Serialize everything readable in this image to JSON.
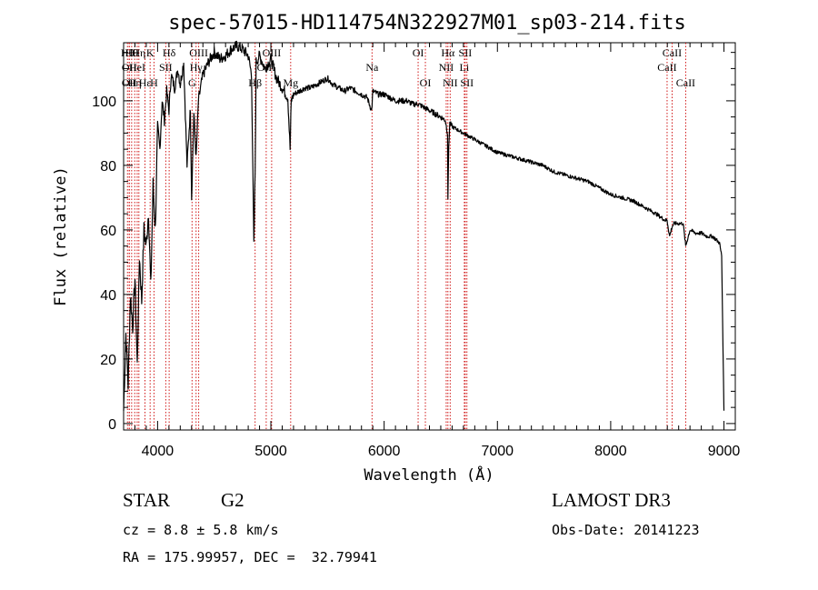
{
  "chart_data": {
    "type": "line",
    "title": "spec-57015-HD114754N322927M01_sp03-214.fits",
    "xlabel": "Wavelength (Å)",
    "ylabel": "Flux (relative)",
    "xlim": [
      3700,
      9100
    ],
    "ylim": [
      -2,
      118
    ],
    "xticks": [
      4000,
      5000,
      6000,
      7000,
      8000,
      9000
    ],
    "yticks": [
      0,
      20,
      40,
      60,
      80,
      100
    ],
    "series": [
      {
        "name": "flux",
        "x": [
          3700,
          3720,
          3740,
          3760,
          3780,
          3800,
          3820,
          3840,
          3860,
          3880,
          3900,
          3920,
          3940,
          3960,
          3980,
          4000,
          4020,
          4040,
          4060,
          4080,
          4100,
          4120,
          4150,
          4180,
          4200,
          4230,
          4260,
          4290,
          4300,
          4320,
          4340,
          4360,
          4380,
          4400,
          4450,
          4500,
          4550,
          4600,
          4650,
          4700,
          4750,
          4800,
          4830,
          4850,
          4861,
          4870,
          4900,
          4950,
          5000,
          5050,
          5100,
          5150,
          5170,
          5180,
          5200,
          5250,
          5300,
          5350,
          5400,
          5450,
          5500,
          5550,
          5600,
          5650,
          5700,
          5750,
          5800,
          5850,
          5890,
          5900,
          5950,
          6000,
          6050,
          6100,
          6150,
          6200,
          6250,
          6300,
          6350,
          6400,
          6450,
          6500,
          6540,
          6560,
          6563,
          6570,
          6580,
          6600,
          6650,
          6700,
          6800,
          6900,
          7000,
          7100,
          7200,
          7300,
          7400,
          7500,
          7600,
          7700,
          7800,
          7900,
          8000,
          8100,
          8200,
          8300,
          8400,
          8480,
          8498,
          8520,
          8542,
          8560,
          8600,
          8640,
          8662,
          8700,
          8750,
          8800,
          8850,
          8900,
          8930,
          8960,
          8980,
          9000
        ],
        "y": [
          4,
          28,
          12,
          40,
          30,
          45,
          18,
          52,
          38,
          60,
          55,
          66,
          42,
          74,
          60,
          92,
          85,
          100,
          94,
          103,
          97,
          108,
          104,
          110,
          105,
          112,
          80,
          98,
          70,
          96,
          82,
          100,
          104,
          108,
          112,
          115,
          113,
          114,
          116,
          117,
          116,
          114,
          108,
          55,
          78,
          112,
          114,
          110,
          113,
          107,
          104,
          101,
          85,
          100,
          102,
          103,
          104,
          104,
          105,
          106,
          107,
          105,
          104,
          103,
          104,
          103,
          102,
          101,
          97,
          103,
          102,
          102,
          101,
          100,
          100,
          100,
          99,
          99,
          98,
          97,
          96,
          95,
          94,
          90,
          70,
          86,
          93,
          92,
          91,
          90,
          88,
          86,
          84,
          83,
          82,
          81,
          80,
          78,
          77,
          76,
          75,
          73,
          71,
          70,
          69,
          67,
          65,
          63,
          63,
          58,
          61,
          62,
          62,
          62,
          55,
          60,
          59,
          59,
          58,
          58,
          57,
          56,
          52,
          4
        ]
      }
    ],
    "lines": [
      {
        "x": 3734,
        "label": "Hθ",
        "row": 1
      },
      {
        "x": 3750,
        "label": "OII",
        "row": 2
      },
      {
        "x": 3750,
        "label": "OII",
        "row": 3
      },
      {
        "x": 3771,
        "label": "Hθ",
        "row": 1
      },
      {
        "x": 3798,
        "label": "Hη",
        "row": 3
      },
      {
        "x": 3820,
        "label": "HeI",
        "row": 2
      },
      {
        "x": 3835,
        "label": "Hη",
        "row": 1
      },
      {
        "x": 3889,
        "label": "Hε",
        "row": 3
      },
      {
        "x": 3934,
        "label": "K",
        "row": 1
      },
      {
        "x": 3968,
        "label": "H",
        "row": 3
      },
      {
        "x": 4072,
        "label": "SII",
        "row": 2
      },
      {
        "x": 4102,
        "label": "Hδ",
        "row": 1
      },
      {
        "x": 4304,
        "label": "G",
        "row": 3
      },
      {
        "x": 4340,
        "label": "Hγ",
        "row": 2
      },
      {
        "x": 4363,
        "label": "OIII",
        "row": 1
      },
      {
        "x": 4861,
        "label": "Hβ",
        "row": 3
      },
      {
        "x": 4959,
        "label": "OIII",
        "row": 2
      },
      {
        "x": 5007,
        "label": "OIII",
        "row": 1
      },
      {
        "x": 5175,
        "label": "Mg",
        "row": 3
      },
      {
        "x": 5893,
        "label": "Na",
        "row": 2
      },
      {
        "x": 6300,
        "label": "OI",
        "row": 1
      },
      {
        "x": 6364,
        "label": "OI",
        "row": 3
      },
      {
        "x": 6548,
        "label": "NII",
        "row": 2
      },
      {
        "x": 6563,
        "label": "Hα",
        "row": 1
      },
      {
        "x": 6583,
        "label": "NII",
        "row": 3
      },
      {
        "x": 6708,
        "label": "Li",
        "row": 2
      },
      {
        "x": 6716,
        "label": "SII",
        "row": 1
      },
      {
        "x": 6731,
        "label": "SII",
        "row": 3
      },
      {
        "x": 8498,
        "label": "CaII",
        "row": 2
      },
      {
        "x": 8542,
        "label": "CaII",
        "row": 1
      },
      {
        "x": 8662,
        "label": "CaII",
        "row": 3
      }
    ]
  },
  "info": {
    "class": "STAR",
    "subclass": "G2",
    "survey": "LAMOST DR3",
    "cz": "cz = 8.8 ± 5.8 km/s",
    "obs_date": "Obs-Date: 20141223",
    "coords": "RA = 175.99957, DEC =  32.79941"
  },
  "colors": {
    "spectrum": "#000000",
    "line_markers": "#cc0000",
    "axes": "#000000"
  }
}
